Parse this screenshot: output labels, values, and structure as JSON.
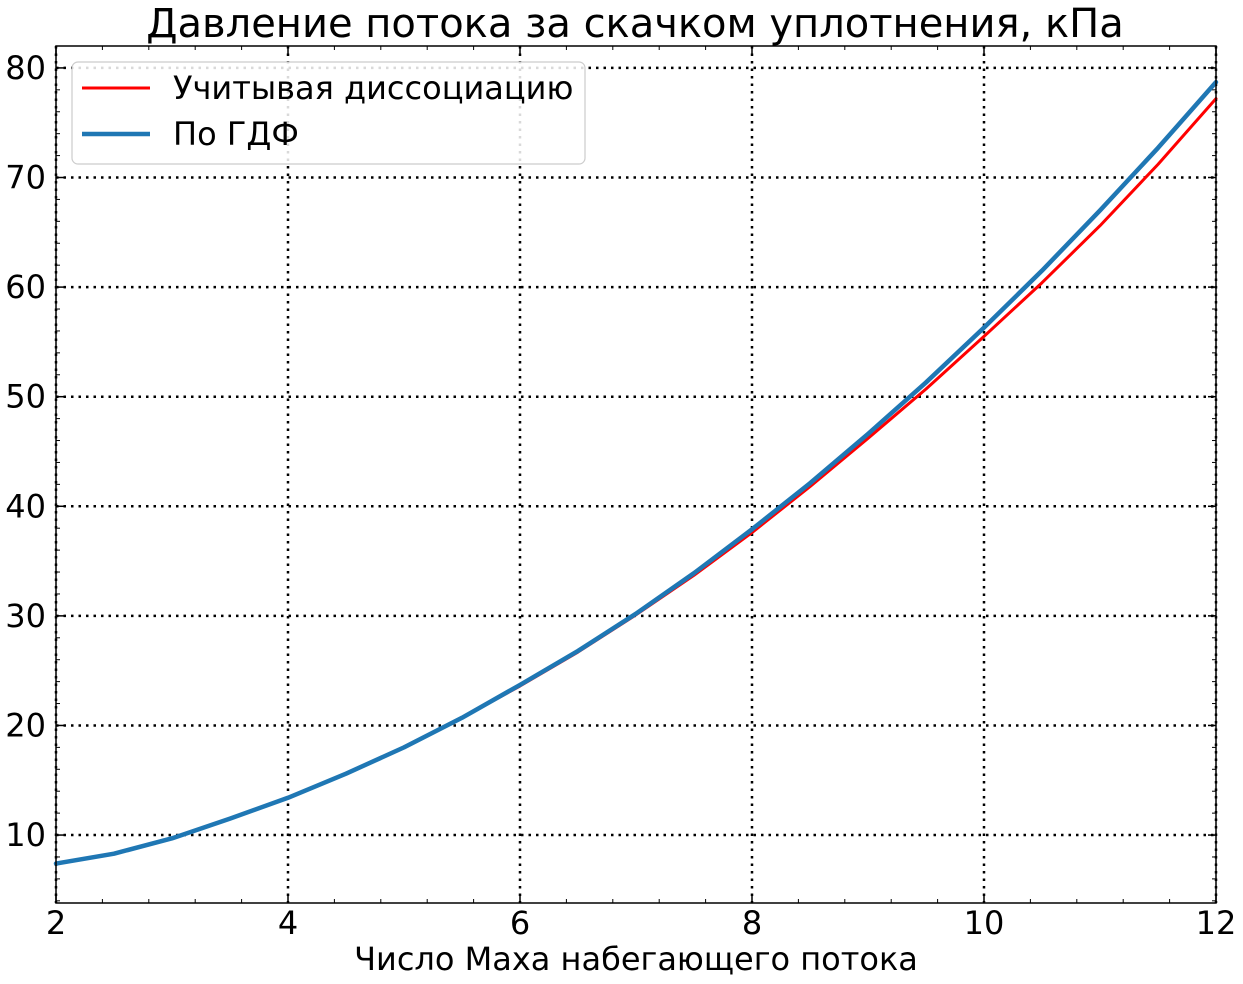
{
  "chart_data": {
    "type": "line",
    "title": "Давление потока за скачком уплотнения, кПа",
    "xlabel": "Число Маха набегающего потока",
    "ylabel": "",
    "xlim": [
      2,
      12
    ],
    "ylim": [
      3.8,
      82
    ],
    "x_ticks": [
      2,
      4,
      6,
      8,
      10,
      12
    ],
    "y_ticks": [
      10,
      20,
      30,
      40,
      50,
      60,
      70,
      80
    ],
    "grid": true,
    "legend_position": "top-left",
    "x": [
      2,
      2.5,
      3,
      3.5,
      4,
      4.5,
      5,
      5.5,
      6,
      6.5,
      7,
      7.5,
      8,
      8.5,
      9,
      9.5,
      10,
      10.5,
      11,
      11.5,
      12
    ],
    "series": [
      {
        "name": "Учитывая диссоциацию",
        "color": "#ff0000",
        "values": [
          7.4,
          8.3,
          9.7,
          11.5,
          13.4,
          15.6,
          18.0,
          20.7,
          23.6,
          26.7,
          30.1,
          33.7,
          37.6,
          41.8,
          46.2,
          50.7,
          55.5,
          60.4,
          65.6,
          71.2,
          77.2
        ]
      },
      {
        "name": "По ГДФ",
        "color": "#1f77b4",
        "values": [
          7.4,
          8.3,
          9.7,
          11.5,
          13.4,
          15.6,
          18.0,
          20.7,
          23.7,
          26.8,
          30.2,
          33.9,
          37.9,
          42.1,
          46.6,
          51.3,
          56.3,
          61.5,
          67.0,
          72.7,
          78.7
        ]
      }
    ]
  }
}
